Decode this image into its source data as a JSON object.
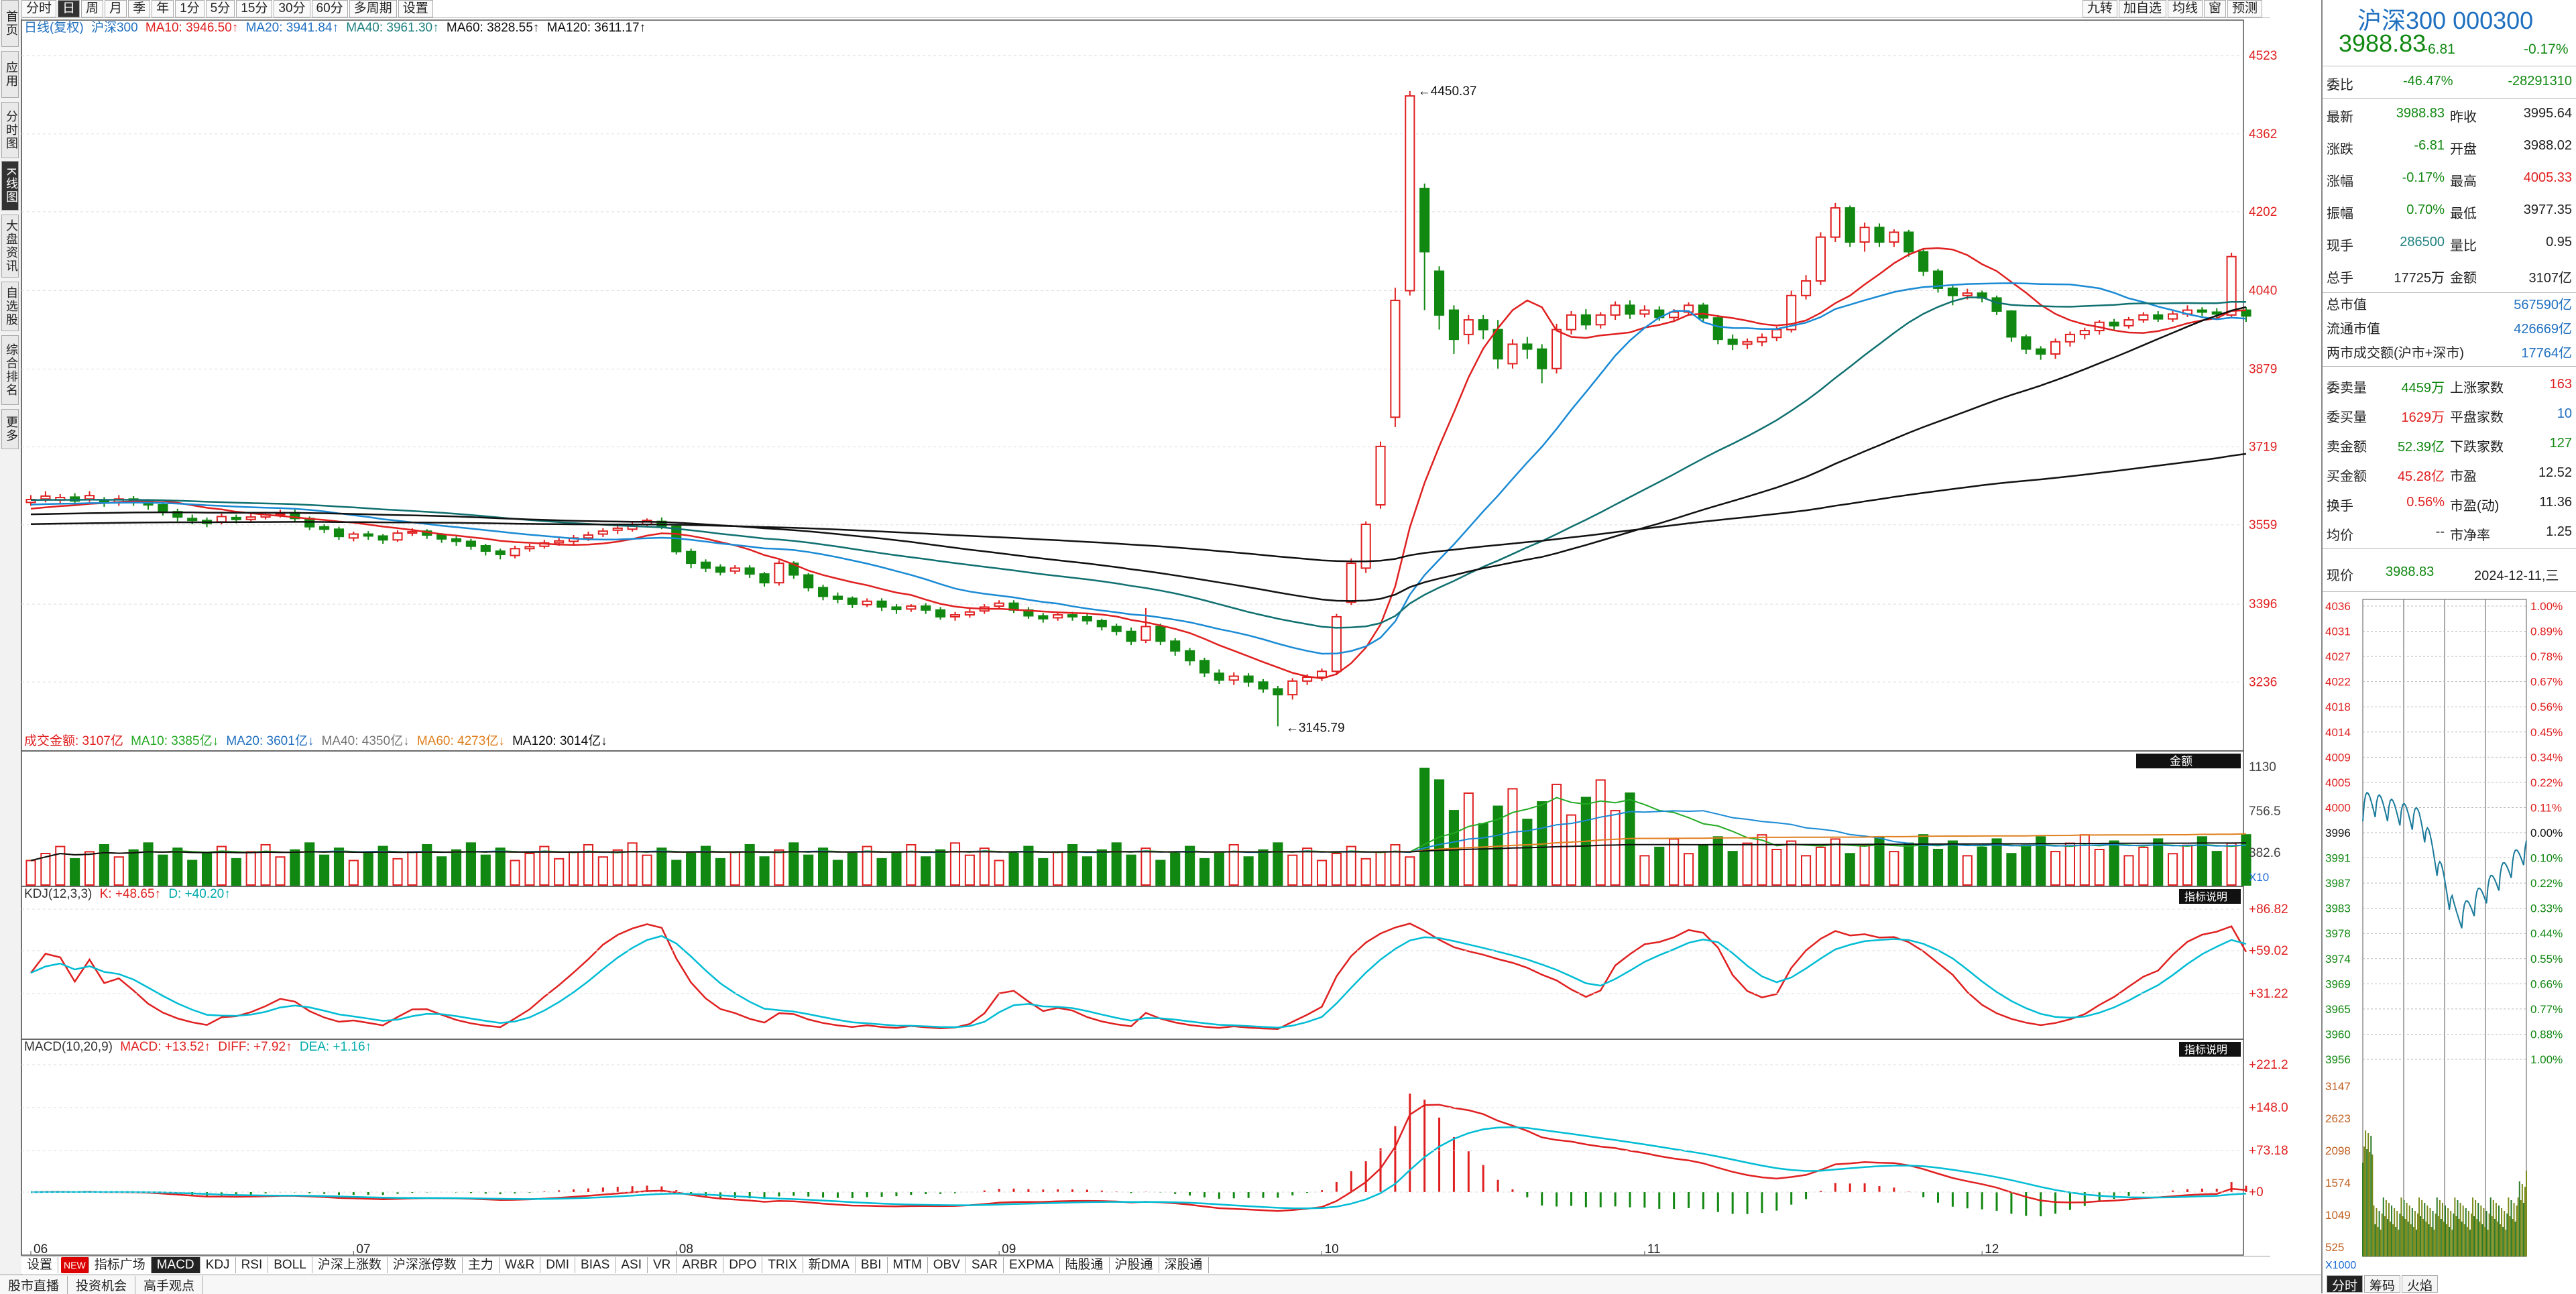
{
  "left_rail": [
    "首页",
    "应用",
    "分时图",
    "K线图",
    "大盘资讯",
    "自选股",
    "综合排名",
    "更多"
  ],
  "period_buttons": [
    "分时",
    "日",
    "周",
    "月",
    "季",
    "年",
    "1分",
    "5分",
    "15分",
    "30分",
    "60分",
    "多周期",
    "设置"
  ],
  "top_right_buttons": [
    "九转",
    "加自选",
    "均线",
    "窗",
    "预测"
  ],
  "main_legend": {
    "period": "日线(复权)",
    "name": "沪深300",
    "ma10": "MA10: 3946.50↑",
    "ma20": "MA20: 3941.84↑",
    "ma40": "MA40: 3961.30↑",
    "ma60": "MA60: 3828.55↑",
    "ma120": "MA120: 3611.17↑"
  },
  "price_axis": [
    "4523",
    "4362",
    "4202",
    "4040",
    "3879",
    "3719",
    "3559",
    "3396",
    "3236"
  ],
  "annotations": {
    "high": "4450.37",
    "low": "3145.79"
  },
  "volume_legend": {
    "total": "成交金额: 3107亿",
    "ma10": "MA10: 3385亿↓",
    "ma20": "MA20: 3601亿↓",
    "ma40": "MA40: 4350亿↓",
    "ma60": "MA60: 4273亿↓",
    "ma120": "MA120: 3014亿↓",
    "badge": "金额",
    "multiplier": "X10"
  },
  "volume_axis": [
    "1130",
    "756.5",
    "382.6"
  ],
  "kdj_legend": {
    "title": "KDJ(12,3,3)",
    "k": "K: +48.65↑",
    "d": "D: +40.20↑",
    "badge": "指标说明"
  },
  "kdj_axis": [
    "+86.82",
    "+59.02",
    "+31.22"
  ],
  "macd_legend": {
    "title": "MACD(10,20,9)",
    "macd": "MACD: +13.52↑",
    "diff": "DIFF: +7.92↑",
    "dea": "DEA: +1.16↑",
    "badge": "指标说明"
  },
  "macd_axis": [
    "+221.2",
    "+148.0",
    "+73.18",
    "+0"
  ],
  "months": [
    "06",
    "07",
    "08",
    "09",
    "10",
    "11",
    "12"
  ],
  "bottom_tabs": [
    "设置",
    "NEW",
    "指标广场",
    "MACD",
    "KDJ",
    "RSI",
    "BOLL",
    "沪深上涨数",
    "沪深涨停数",
    "主力",
    "W&R",
    "DMI",
    "BIAS",
    "ASI",
    "VR",
    "ARBR",
    "DPO",
    "TRIX",
    "新DMA",
    "BBI",
    "MTM",
    "OBV",
    "SAR",
    "EXPMA",
    "陆股通",
    "沪股通",
    "深股通"
  ],
  "status_bar": [
    "股市直播",
    "投资机会",
    "高手观点"
  ],
  "quote": {
    "title": "沪深300 000300",
    "price": "3988.83",
    "change": "-6.81",
    "pct": "-0.17%",
    "weibi_label": "委比",
    "weibi": "-46.47%",
    "weicha": "-28291310",
    "rows": [
      [
        "最新",
        "3988.83",
        "昨收",
        "3995.64"
      ],
      [
        "涨跌",
        "-6.81",
        "开盘",
        "3988.02"
      ],
      [
        "涨幅",
        "-0.17%",
        "最高",
        "4005.33"
      ],
      [
        "振幅",
        "0.70%",
        "最低",
        "3977.35"
      ],
      [
        "现手",
        "286500",
        "量比",
        "0.95"
      ],
      [
        "总手",
        "17725万",
        "金额",
        "3107亿"
      ]
    ],
    "caps": [
      [
        "总市值",
        "567590亿"
      ],
      [
        "流通市值",
        "426669亿"
      ],
      [
        "两市成交额(沪市+深市)",
        "17764亿"
      ]
    ],
    "orders": [
      [
        "委卖量",
        "4459万",
        "上涨家数",
        "163"
      ],
      [
        "委买量",
        "1629万",
        "平盘家数",
        "10"
      ],
      [
        "卖金额",
        "52.39亿",
        "下跌家数",
        "127"
      ],
      [
        "买金额",
        "45.28亿",
        "市盈",
        "12.52"
      ],
      [
        "换手",
        "0.56%",
        "市盈(动)",
        "11.36"
      ],
      [
        "均价",
        "--",
        "市净率",
        "1.25"
      ]
    ],
    "now_label": "现价",
    "now_price": "3988.83",
    "date": "2024-12-11,三"
  },
  "mini_chart": {
    "price_labels": [
      "4036",
      "4031",
      "4027",
      "4022",
      "4018",
      "4014",
      "4009",
      "4005",
      "4000",
      "3996",
      "3991",
      "3987",
      "3983",
      "3978",
      "3974",
      "3969",
      "3965",
      "3960",
      "3956"
    ],
    "pct_labels": [
      "1.00%",
      "0.89%",
      "0.78%",
      "0.67%",
      "0.56%",
      "0.45%",
      "0.34%",
      "0.22%",
      "0.11%",
      "0.00%",
      "0.10%",
      "0.22%",
      "0.33%",
      "0.44%",
      "0.55%",
      "0.66%",
      "0.77%",
      "0.88%",
      "1.00%"
    ],
    "vol_labels": [
      "3147",
      "2623",
      "2098",
      "1574",
      "1049",
      "525"
    ],
    "vol_mult": "X1000",
    "tabs": [
      "分时",
      "筹码",
      "火焰"
    ]
  },
  "chart_data": {
    "type": "candlestick",
    "ylim": [
      3100,
      4560
    ],
    "candles": [
      [
        3605,
        3611,
        3598,
        3620
      ],
      [
        3612,
        3618,
        3605,
        3628
      ],
      [
        3610,
        3615,
        3602,
        3622
      ],
      [
        3616,
        3608,
        3600,
        3624
      ],
      [
        3612,
        3619,
        3606,
        3628
      ],
      [
        3610,
        3604,
        3596,
        3616
      ],
      [
        3605,
        3612,
        3598,
        3620
      ],
      [
        3612,
        3606,
        3598,
        3618
      ],
      [
        3606,
        3600,
        3590,
        3612
      ],
      [
        3600,
        3585,
        3578,
        3604
      ],
      [
        3586,
        3575,
        3566,
        3592
      ],
      [
        3572,
        3568,
        3560,
        3580
      ],
      [
        3568,
        3562,
        3554,
        3574
      ],
      [
        3565,
        3576,
        3560,
        3582
      ],
      [
        3574,
        3570,
        3562,
        3580
      ],
      [
        3570,
        3575,
        3566,
        3582
      ],
      [
        3575,
        3580,
        3570,
        3586
      ],
      [
        3580,
        3582,
        3574,
        3590
      ],
      [
        3584,
        3572,
        3566,
        3590
      ],
      [
        3572,
        3555,
        3548,
        3576
      ],
      [
        3555,
        3550,
        3542,
        3560
      ],
      [
        3550,
        3535,
        3528,
        3555
      ],
      [
        3532,
        3540,
        3525,
        3545
      ],
      [
        3540,
        3536,
        3528,
        3546
      ],
      [
        3536,
        3528,
        3520,
        3540
      ],
      [
        3528,
        3542,
        3524,
        3548
      ],
      [
        3542,
        3545,
        3536,
        3552
      ],
      [
        3546,
        3538,
        3530,
        3550
      ],
      [
        3538,
        3530,
        3522,
        3542
      ],
      [
        3530,
        3525,
        3516,
        3535
      ],
      [
        3525,
        3515,
        3508,
        3530
      ],
      [
        3516,
        3505,
        3496,
        3520
      ],
      [
        3505,
        3498,
        3488,
        3510
      ],
      [
        3496,
        3510,
        3490,
        3516
      ],
      [
        3510,
        3514,
        3504,
        3520
      ],
      [
        3515,
        3522,
        3510,
        3528
      ],
      [
        3522,
        3526,
        3516,
        3532
      ],
      [
        3525,
        3532,
        3518,
        3538
      ],
      [
        3532,
        3538,
        3526,
        3545
      ],
      [
        3540,
        3546,
        3534,
        3552
      ],
      [
        3548,
        3552,
        3540,
        3560
      ],
      [
        3550,
        3560,
        3545,
        3566
      ],
      [
        3560,
        3568,
        3554,
        3572
      ],
      [
        3566,
        3556,
        3550,
        3574
      ],
      [
        3556,
        3504,
        3498,
        3560
      ],
      [
        3504,
        3480,
        3470,
        3510
      ],
      [
        3482,
        3470,
        3462,
        3488
      ],
      [
        3472,
        3462,
        3455,
        3478
      ],
      [
        3464,
        3470,
        3458,
        3476
      ],
      [
        3470,
        3458,
        3450,
        3476
      ],
      [
        3458,
        3440,
        3432,
        3462
      ],
      [
        3440,
        3480,
        3434,
        3486
      ],
      [
        3480,
        3456,
        3448,
        3484
      ],
      [
        3456,
        3430,
        3422,
        3460
      ],
      [
        3430,
        3412,
        3404,
        3436
      ],
      [
        3412,
        3406,
        3398,
        3420
      ],
      [
        3408,
        3396,
        3388,
        3412
      ],
      [
        3395,
        3402,
        3390,
        3408
      ],
      [
        3402,
        3390,
        3382,
        3408
      ],
      [
        3390,
        3385,
        3376,
        3396
      ],
      [
        3386,
        3392,
        3380,
        3396
      ],
      [
        3392,
        3384,
        3376,
        3398
      ],
      [
        3384,
        3370,
        3364,
        3390
      ],
      [
        3370,
        3374,
        3362,
        3380
      ],
      [
        3374,
        3380,
        3368,
        3386
      ],
      [
        3382,
        3390,
        3376,
        3396
      ],
      [
        3392,
        3398,
        3386,
        3404
      ],
      [
        3398,
        3384,
        3378,
        3404
      ],
      [
        3384,
        3372,
        3366,
        3390
      ],
      [
        3372,
        3366,
        3358,
        3378
      ],
      [
        3368,
        3374,
        3362,
        3380
      ],
      [
        3374,
        3370,
        3362,
        3380
      ],
      [
        3370,
        3362,
        3354,
        3376
      ],
      [
        3362,
        3350,
        3342,
        3366
      ],
      [
        3350,
        3340,
        3332,
        3356
      ],
      [
        3340,
        3320,
        3312,
        3348
      ],
      [
        3322,
        3350,
        3316,
        3388
      ],
      [
        3350,
        3320,
        3312,
        3356
      ],
      [
        3320,
        3300,
        3290,
        3326
      ],
      [
        3300,
        3280,
        3270,
        3306
      ],
      [
        3280,
        3255,
        3246,
        3286
      ],
      [
        3254,
        3240,
        3232,
        3262
      ],
      [
        3240,
        3248,
        3230,
        3256
      ],
      [
        3248,
        3236,
        3226,
        3254
      ],
      [
        3236,
        3222,
        3214,
        3242
      ],
      [
        3222,
        3210,
        3145,
        3228
      ],
      [
        3210,
        3238,
        3200,
        3244
      ],
      [
        3238,
        3246,
        3230,
        3252
      ],
      [
        3246,
        3258,
        3238,
        3264
      ],
      [
        3258,
        3370,
        3250,
        3376
      ],
      [
        3400,
        3480,
        3394,
        3490
      ],
      [
        3470,
        3560,
        3460,
        3566
      ],
      [
        3600,
        3720,
        3592,
        3730
      ],
      [
        3780,
        4020,
        3760,
        4046
      ],
      [
        4040,
        4440,
        4030,
        4450
      ],
      [
        4250,
        4120,
        4000,
        4260
      ],
      [
        4080,
        3990,
        3960,
        4090
      ],
      [
        4000,
        3940,
        3910,
        4010
      ],
      [
        3950,
        3980,
        3930,
        3990
      ],
      [
        3980,
        3960,
        3940,
        3990
      ],
      [
        3960,
        3900,
        3880,
        3980
      ],
      [
        3890,
        3930,
        3880,
        3940
      ],
      [
        3930,
        3920,
        3900,
        3945
      ],
      [
        3920,
        3880,
        3850,
        3930
      ],
      [
        3880,
        3960,
        3870,
        3972
      ],
      [
        3960,
        3990,
        3950,
        3998
      ],
      [
        3990,
        3970,
        3960,
        4002
      ],
      [
        3970,
        3990,
        3962,
        3996
      ],
      [
        3990,
        4010,
        3980,
        4018
      ],
      [
        4010,
        3992,
        3982,
        4020
      ],
      [
        3992,
        4000,
        3985,
        4010
      ],
      [
        4000,
        3985,
        3978,
        4008
      ],
      [
        3985,
        3996,
        3978,
        4002
      ],
      [
        3996,
        4010,
        3990,
        4016
      ],
      [
        4010,
        3984,
        3976,
        4015
      ],
      [
        3984,
        3940,
        3930,
        3990
      ],
      [
        3940,
        3930,
        3918,
        3950
      ],
      [
        3930,
        3935,
        3920,
        3942
      ],
      [
        3935,
        3944,
        3926,
        3952
      ],
      [
        3944,
        3960,
        3936,
        3966
      ],
      [
        3960,
        4030,
        3954,
        4040
      ],
      [
        4030,
        4060,
        4022,
        4072
      ],
      [
        4060,
        4150,
        4052,
        4160
      ],
      [
        4150,
        4210,
        4140,
        4220
      ],
      [
        4210,
        4140,
        4130,
        4215
      ],
      [
        4140,
        4170,
        4120,
        4180
      ],
      [
        4170,
        4140,
        4130,
        4178
      ],
      [
        4140,
        4160,
        4130,
        4166
      ],
      [
        4160,
        4120,
        4110,
        4165
      ],
      [
        4120,
        4080,
        4070,
        4126
      ],
      [
        4080,
        4045,
        4036,
        4085
      ],
      [
        4045,
        4030,
        4010,
        4050
      ],
      [
        4030,
        4035,
        4022,
        4044
      ],
      [
        4035,
        4025,
        4016,
        4040
      ],
      [
        4025,
        3998,
        3990,
        4030
      ],
      [
        3998,
        3945,
        3935,
        4000
      ],
      [
        3945,
        3920,
        3910,
        3950
      ],
      [
        3920,
        3910,
        3898,
        3926
      ],
      [
        3910,
        3935,
        3900,
        3942
      ],
      [
        3935,
        3950,
        3925,
        3956
      ],
      [
        3950,
        3958,
        3940,
        3964
      ],
      [
        3958,
        3975,
        3950,
        3980
      ],
      [
        3975,
        3968,
        3960,
        3982
      ],
      [
        3968,
        3980,
        3962,
        3986
      ],
      [
        3980,
        3990,
        3974,
        3996
      ],
      [
        3990,
        3982,
        3976,
        3998
      ],
      [
        3982,
        3992,
        3976,
        3998
      ],
      [
        3992,
        4000,
        3986,
        4010
      ],
      [
        4000,
        3996,
        3988,
        4006
      ],
      [
        3996,
        3992,
        3984,
        4004
      ],
      [
        3990,
        4110,
        3986,
        4118
      ],
      [
        4000,
        3988,
        3976,
        4006
      ]
    ]
  }
}
